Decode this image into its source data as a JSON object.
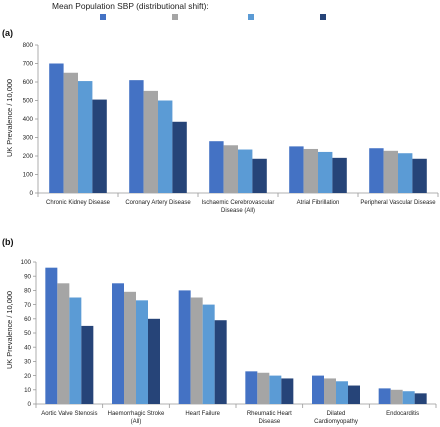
{
  "legend": {
    "title": "Mean Population SBP (distributional shift):",
    "entries": [
      {
        "name": "",
        "color": "#4472C4"
      },
      {
        "name": "",
        "color": "#A5A5A5"
      },
      {
        "name": "",
        "color": "#5B9BD5"
      },
      {
        "name": "",
        "color": "#264478"
      }
    ]
  },
  "chart_data": [
    {
      "type": "bar",
      "panel": "(a)",
      "ylabel": "UK Prevalence / 10,000",
      "ylim": [
        0,
        800
      ],
      "yticks": [
        0,
        100,
        200,
        300,
        400,
        500,
        600,
        700,
        800
      ],
      "grid": false,
      "categories": [
        [
          "Chronic Kidney Disease"
        ],
        [
          "Coronary Artery Disease"
        ],
        [
          "Ischaemic Cerebrovascular",
          "Disease (All)"
        ],
        [
          "Atrial Fibrillation"
        ],
        [
          "Peripheral Vascular Disease"
        ]
      ],
      "series": [
        {
          "values": [
            700,
            610,
            280,
            252,
            242
          ],
          "color": "#4472C4"
        },
        {
          "values": [
            650,
            552,
            258,
            238,
            228
          ],
          "color": "#A5A5A5"
        },
        {
          "values": [
            605,
            500,
            235,
            222,
            215
          ],
          "color": "#5B9BD5"
        },
        {
          "values": [
            505,
            385,
            185,
            190,
            185
          ],
          "color": "#264478"
        }
      ]
    },
    {
      "type": "bar",
      "panel": "(b)",
      "ylabel": "UK Prevalence / 10,000",
      "ylim": [
        0,
        100
      ],
      "yticks": [
        0,
        10,
        20,
        30,
        40,
        50,
        60,
        70,
        80,
        90,
        100
      ],
      "grid": false,
      "categories": [
        [
          "Aortic Valve Stenosis"
        ],
        [
          "Haemorrhagic Stroke",
          "(All)"
        ],
        [
          "Heart Failure"
        ],
        [
          "Rheumatic Heart",
          "Disease"
        ],
        [
          "Dilated",
          "Cardiomyopathy"
        ],
        [
          "Endocarditis"
        ]
      ],
      "series": [
        {
          "values": [
            96,
            85,
            80,
            23,
            20,
            11
          ],
          "color": "#4472C4"
        },
        {
          "values": [
            85,
            79,
            75,
            22,
            18,
            10
          ],
          "color": "#A5A5A5"
        },
        {
          "values": [
            75,
            73,
            70,
            20,
            16,
            9
          ],
          "color": "#5B9BD5"
        },
        {
          "values": [
            55,
            60,
            59,
            18,
            13,
            7.5
          ],
          "color": "#264478"
        }
      ]
    }
  ]
}
